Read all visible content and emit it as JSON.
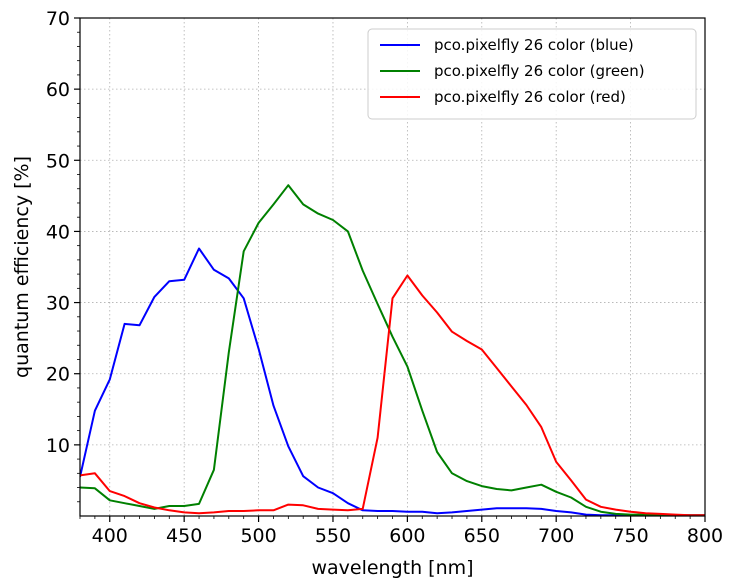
{
  "chart_data": {
    "type": "line",
    "xlabel": "wavelength [nm]",
    "ylabel": "quantum efficiency [%]",
    "xlim": [
      380,
      800
    ],
    "ylim": [
      0,
      70
    ],
    "xticks": [
      400,
      450,
      500,
      550,
      600,
      650,
      700,
      750,
      800
    ],
    "yticks": [
      10,
      20,
      30,
      40,
      50,
      60,
      70
    ],
    "grid": true,
    "legend_position": "top-right",
    "series": [
      {
        "name": "pco.pixelfly 26 color (blue)",
        "color": "#0000ff",
        "x": [
          380,
          390,
          400,
          410,
          420,
          430,
          440,
          450,
          460,
          470,
          480,
          490,
          500,
          510,
          520,
          530,
          540,
          550,
          560,
          570,
          580,
          590,
          600,
          610,
          620,
          630,
          640,
          650,
          660,
          670,
          680,
          690,
          700,
          710,
          720,
          730,
          740,
          750,
          760,
          770,
          780,
          790,
          800
        ],
        "y": [
          5.5,
          14.8,
          19.2,
          27.0,
          26.8,
          30.8,
          33.0,
          33.2,
          37.6,
          34.6,
          33.4,
          30.6,
          23.5,
          15.5,
          9.8,
          5.6,
          4.0,
          3.2,
          1.8,
          0.8,
          0.7,
          0.7,
          0.6,
          0.6,
          0.4,
          0.5,
          0.7,
          0.9,
          1.1,
          1.1,
          1.1,
          1.0,
          0.7,
          0.5,
          0.2,
          0.1,
          0.1,
          0.1,
          0.1,
          0.1,
          0.1,
          0.1,
          0.1
        ]
      },
      {
        "name": "pco.pixelfly 26 color (green)",
        "color": "#008000",
        "x": [
          380,
          390,
          400,
          410,
          420,
          430,
          440,
          450,
          460,
          470,
          480,
          490,
          500,
          510,
          520,
          530,
          540,
          550,
          560,
          570,
          580,
          590,
          600,
          610,
          620,
          630,
          640,
          650,
          660,
          670,
          680,
          690,
          700,
          710,
          720,
          730,
          740,
          750,
          760,
          770,
          780,
          790,
          800
        ],
        "y": [
          4.0,
          3.9,
          2.2,
          1.8,
          1.4,
          1.0,
          1.4,
          1.4,
          1.7,
          6.5,
          23.0,
          37.2,
          41.2,
          43.8,
          46.5,
          43.8,
          42.5,
          41.6,
          40.0,
          34.5,
          29.8,
          25.2,
          21.0,
          14.8,
          9.0,
          6.0,
          4.9,
          4.2,
          3.8,
          3.6,
          4.0,
          4.4,
          3.4,
          2.6,
          1.3,
          0.6,
          0.3,
          0.2,
          0.2,
          0.1,
          0.1,
          0.1,
          0.1
        ]
      },
      {
        "name": "pco.pixelfly 26 color (red)",
        "color": "#ff0000",
        "x": [
          380,
          390,
          400,
          410,
          420,
          430,
          440,
          450,
          460,
          470,
          480,
          490,
          500,
          510,
          520,
          530,
          540,
          550,
          560,
          570,
          580,
          590,
          600,
          610,
          620,
          630,
          640,
          650,
          660,
          670,
          680,
          690,
          700,
          710,
          720,
          730,
          740,
          750,
          760,
          770,
          780,
          790,
          800
        ],
        "y": [
          5.7,
          6.0,
          3.5,
          2.8,
          1.8,
          1.2,
          0.8,
          0.5,
          0.4,
          0.5,
          0.7,
          0.7,
          0.8,
          0.8,
          1.6,
          1.5,
          1.0,
          0.9,
          0.8,
          1.0,
          11.0,
          30.6,
          33.8,
          31.0,
          28.6,
          25.9,
          24.6,
          23.4,
          20.8,
          18.2,
          15.6,
          12.5,
          7.6,
          5.0,
          2.3,
          1.3,
          0.9,
          0.6,
          0.4,
          0.3,
          0.2,
          0.1,
          0.1
        ]
      }
    ]
  }
}
